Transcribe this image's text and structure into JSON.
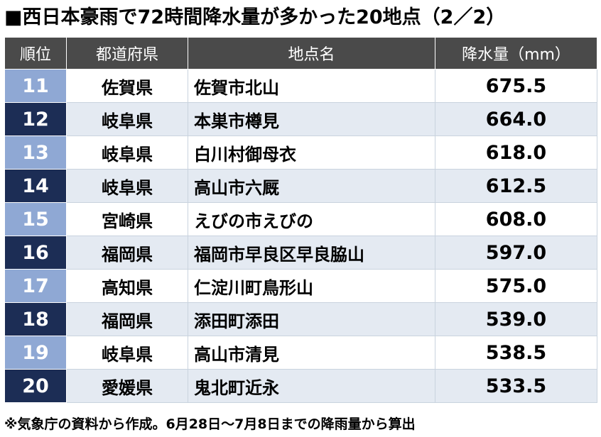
{
  "title": "■西日本豪雨で72時間降水量が多かった20地点（2／2）",
  "chart_data": {
    "type": "table",
    "columns": [
      "順位",
      "都道府県",
      "地点名",
      "降水量（mm）"
    ],
    "rows": [
      {
        "rank": "11",
        "prefecture": "佐賀県",
        "location": "佐賀市北山",
        "value": "675.5"
      },
      {
        "rank": "12",
        "prefecture": "岐阜県",
        "location": "本巣市樽見",
        "value": "664.0"
      },
      {
        "rank": "13",
        "prefecture": "岐阜県",
        "location": "白川村御母衣",
        "value": "618.0"
      },
      {
        "rank": "14",
        "prefecture": "岐阜県",
        "location": "高山市六厩",
        "value": "612.5"
      },
      {
        "rank": "15",
        "prefecture": "宮崎県",
        "location": "えびの市えびの",
        "value": "608.0"
      },
      {
        "rank": "16",
        "prefecture": "福岡県",
        "location": "福岡市早良区早良脇山",
        "value": "597.0"
      },
      {
        "rank": "17",
        "prefecture": "高知県",
        "location": "仁淀川町鳥形山",
        "value": "575.0"
      },
      {
        "rank": "18",
        "prefecture": "福岡県",
        "location": "添田町添田",
        "value": "539.0"
      },
      {
        "rank": "19",
        "prefecture": "岐阜県",
        "location": "高山市清見",
        "value": "538.5"
      },
      {
        "rank": "20",
        "prefecture": "愛媛県",
        "location": "鬼北町近永",
        "value": "533.5"
      }
    ]
  },
  "note": "※気象庁の資料から作成。6月28日～7月8日までの降雨量から算出",
  "colors": {
    "header_bg": "#4a4a4a",
    "rank_odd": "#8fa8d4",
    "rank_even": "#1c2d55",
    "row_even_bg": "#e4eaf2"
  }
}
